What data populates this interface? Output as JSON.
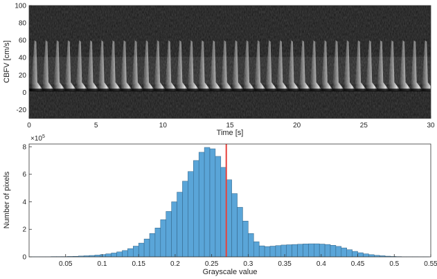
{
  "chart_data": [
    {
      "type": "heatmap",
      "title": "",
      "xlabel": "Time [s]",
      "ylabel": "CBFV [cm/s]",
      "xlim": [
        0,
        30
      ],
      "ylim": [
        -30,
        100
      ],
      "xticks": [
        0,
        5,
        10,
        15,
        20,
        25,
        30
      ],
      "yticks": [
        -20,
        0,
        20,
        40,
        60,
        80,
        100
      ],
      "colormap": "gray",
      "beat_count": 36,
      "peak_velocity": 60,
      "baseline_velocity": 0
    },
    {
      "type": "bar",
      "title": "",
      "xlabel": "Grayscale value",
      "ylabel": "Number of pixels",
      "y_exponent_label": "×10",
      "y_exponent": "5",
      "xlim": [
        0.0,
        0.55
      ],
      "ylim": [
        0,
        8.2
      ],
      "xticks": [
        0.05,
        0.1,
        0.15,
        0.2,
        0.25,
        0.3,
        0.35,
        0.4,
        0.45,
        0.5,
        0.55
      ],
      "yticks": [
        0,
        2,
        4,
        6,
        8
      ],
      "bin_width": 0.0075,
      "bin_start": 0.0,
      "bar_color": "#5aa5d8",
      "bar_edge_color": "#2f5f80",
      "threshold": {
        "value": 0.27,
        "color": "#e8413a"
      },
      "values": [
        0.01,
        0.01,
        0.01,
        0.01,
        0.02,
        0.02,
        0.02,
        0.03,
        0.04,
        0.06,
        0.08,
        0.1,
        0.13,
        0.17,
        0.22,
        0.28,
        0.36,
        0.46,
        0.6,
        0.78,
        1.0,
        1.3,
        1.7,
        2.1,
        2.7,
        3.3,
        4.0,
        4.7,
        5.5,
        6.2,
        7.0,
        7.6,
        7.95,
        7.85,
        7.3,
        6.5,
        5.6,
        4.6,
        3.6,
        2.6,
        1.7,
        1.1,
        0.8,
        0.75,
        0.78,
        0.82,
        0.86,
        0.88,
        0.9,
        0.92,
        0.94,
        0.95,
        0.95,
        0.93,
        0.9,
        0.84,
        0.76,
        0.65,
        0.52,
        0.4,
        0.3,
        0.22,
        0.16,
        0.11,
        0.08,
        0.05,
        0.03,
        0.02,
        0.01,
        0.01,
        0.01,
        0.005,
        0.005
      ]
    }
  ]
}
